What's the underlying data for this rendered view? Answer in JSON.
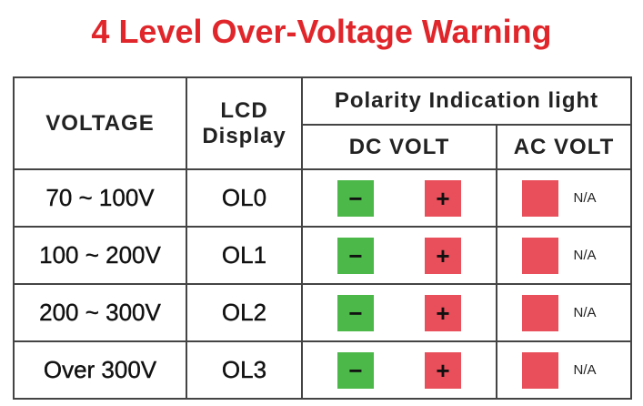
{
  "header": {
    "title": "4 Level Over-Voltage Warning"
  },
  "table": {
    "headers": {
      "voltage": "VOLTAGE",
      "lcd": [
        "LCD",
        "Display"
      ],
      "polarity": "Polarity Indication light",
      "dc": "DC VOLT",
      "ac": "AC VOLT"
    },
    "rows": [
      {
        "voltage": "70 ~ 100V",
        "lcd": "OL0",
        "minus": "−",
        "plus": "+",
        "ac": "N/A"
      },
      {
        "voltage": "100 ~ 200V",
        "lcd": "OL1",
        "minus": "−",
        "plus": "+",
        "ac": "N/A"
      },
      {
        "voltage": "200 ~ 300V",
        "lcd": "OL2",
        "minus": "−",
        "plus": "+",
        "ac": "N/A"
      },
      {
        "voltage": "Over 300V",
        "lcd": "OL3",
        "minus": "−",
        "plus": "+",
        "ac": "N/A"
      }
    ]
  }
}
